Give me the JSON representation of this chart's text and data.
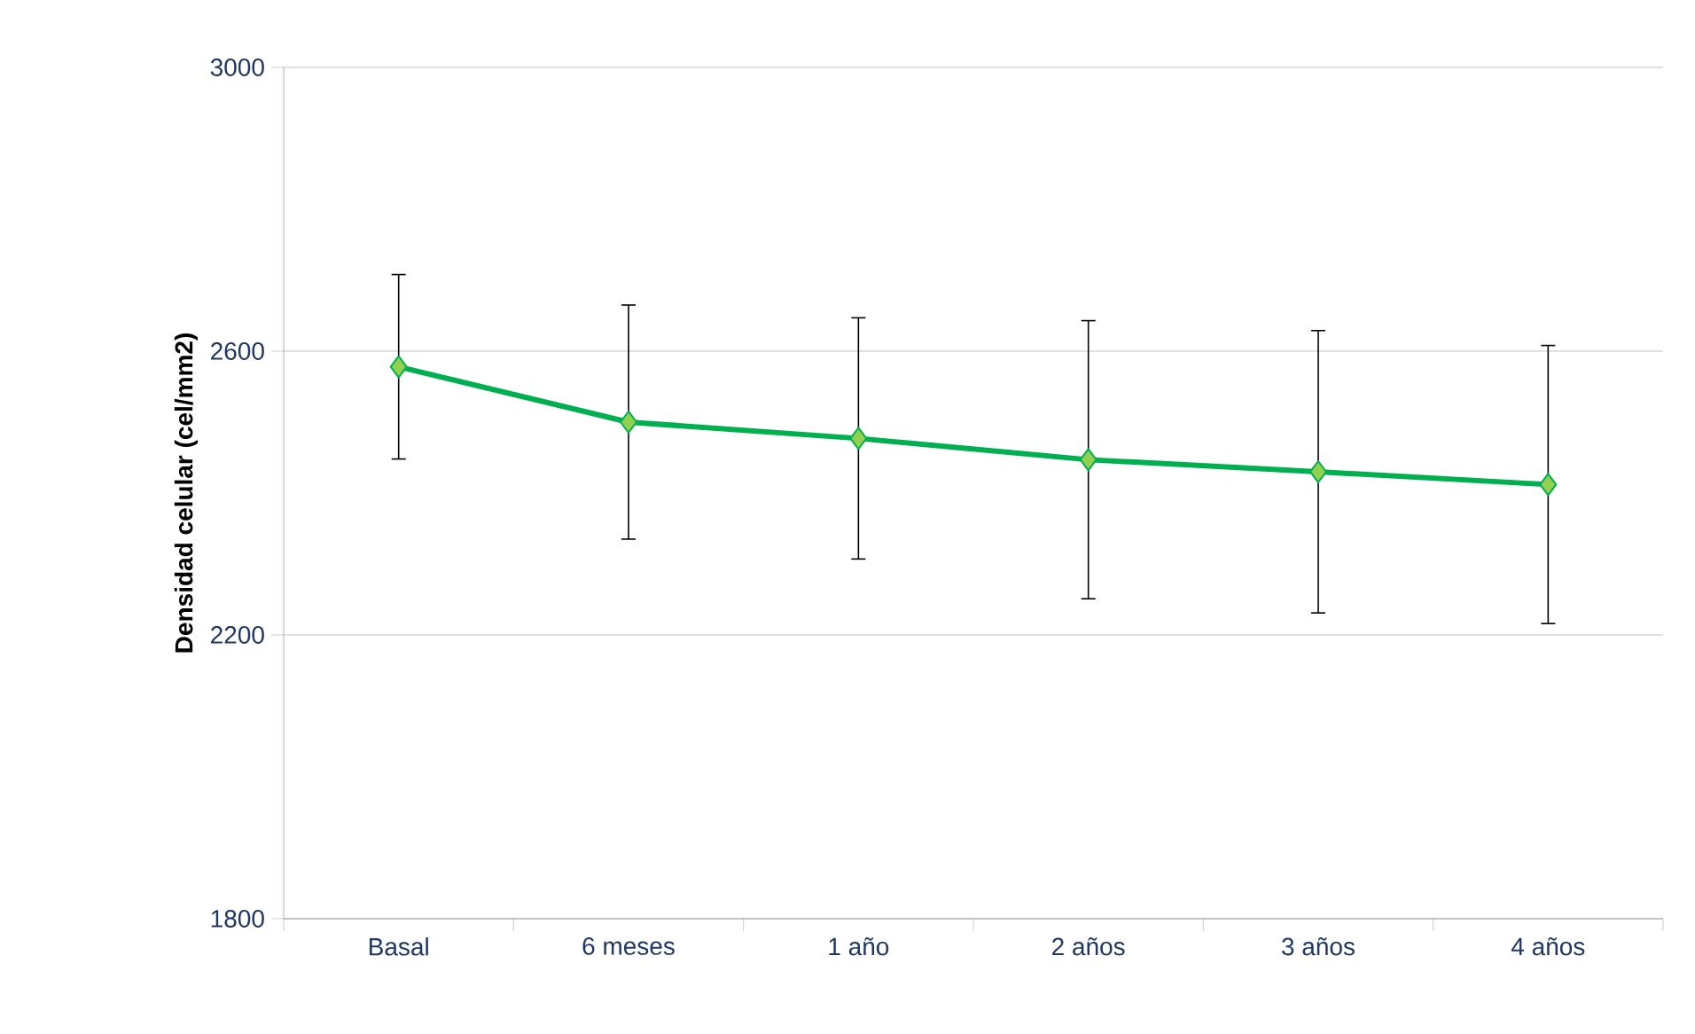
{
  "chart_data": {
    "type": "line",
    "ylabel": "Densidad celular (cel/mm2)",
    "categories": [
      "Basal",
      "6 meses",
      "1 año",
      "2 años",
      "3 años",
      "4 años"
    ],
    "series": [
      {
        "color": "#00b050",
        "values": [
          2578,
          2500,
          2477,
          2447,
          2430,
          2412
        ],
        "errors": [
          130,
          165,
          170,
          196,
          199,
          196
        ]
      }
    ],
    "ylim": [
      1800,
      3000
    ],
    "yticks": [
      1800,
      2200,
      2600,
      3000
    ],
    "grid": "y",
    "marker": "diamond",
    "line_style": "solid"
  }
}
